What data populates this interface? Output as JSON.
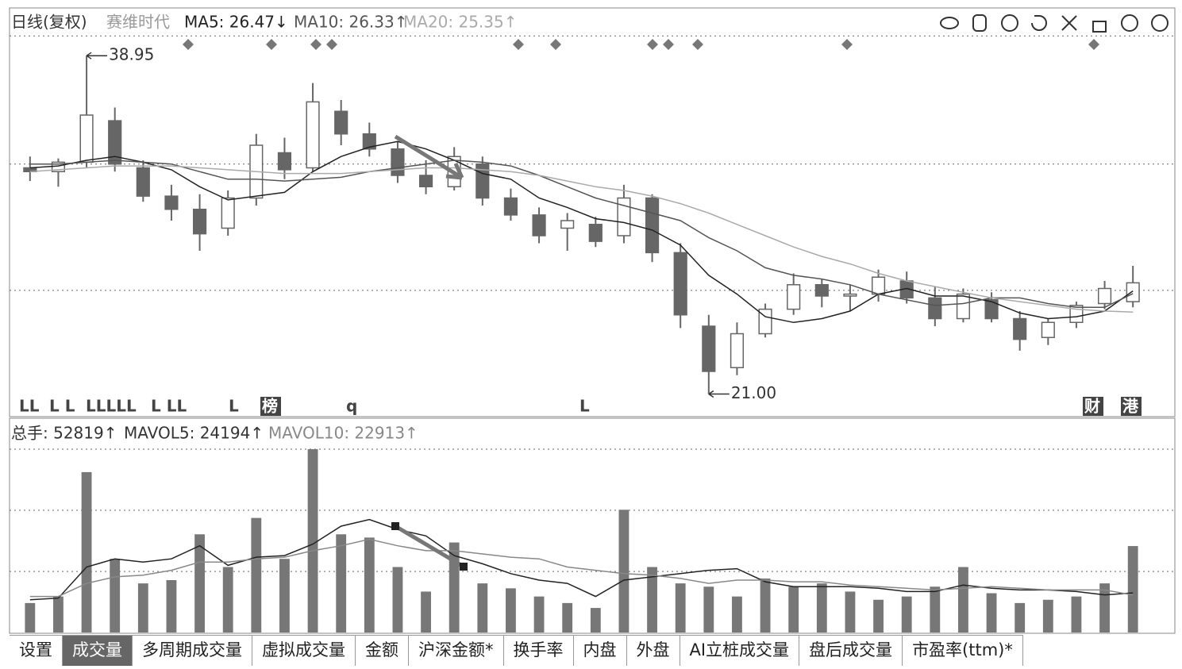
{
  "header": {
    "period": "日线(复权)",
    "stock": "赛维时代",
    "legend": [
      "MA5: 26.47↓",
      "MA10: 26.33↑",
      "MA20: 25.35↑"
    ]
  },
  "chart_data": [
    {
      "type": "candlestick",
      "open": [
        33.0,
        32.8,
        33.3,
        35.5,
        33.0,
        31.5,
        30.8,
        29.8,
        31.4,
        33.8,
        33.0,
        36.0,
        34.8,
        34.0,
        32.6,
        32.0,
        33.2,
        31.4,
        30.5,
        29.8,
        30.0,
        29.4,
        31.4,
        28.5,
        24.6,
        22.4,
        24.2,
        25.5,
        26.8,
        26.2,
        26.3,
        27.0,
        26.1,
        25.0,
        26.0,
        25.0,
        24.0,
        24.8,
        25.8,
        25.9
      ],
      "high": [
        33.6,
        33.5,
        38.95,
        36.2,
        33.4,
        32.1,
        31.6,
        31.8,
        34.8,
        34.6,
        37.5,
        36.6,
        35.4,
        34.4,
        33.4,
        34.1,
        33.6,
        31.9,
        30.9,
        30.6,
        30.4,
        32.1,
        31.6,
        29.0,
        25.2,
        24.8,
        25.8,
        27.4,
        27.1,
        26.8,
        27.6,
        27.5,
        26.7,
        26.6,
        26.4,
        25.4,
        25.0,
        25.9,
        27.0,
        27.8
      ],
      "low": [
        32.3,
        32.0,
        33.0,
        32.8,
        31.2,
        30.2,
        28.6,
        29.4,
        31.0,
        32.4,
        32.8,
        34.2,
        33.6,
        32.2,
        31.6,
        31.8,
        31.0,
        30.2,
        29.0,
        28.6,
        28.8,
        29.0,
        28.0,
        24.5,
        21.0,
        22.0,
        24.0,
        25.2,
        25.6,
        25.4,
        25.9,
        25.8,
        24.6,
        24.8,
        24.8,
        23.3,
        23.6,
        24.5,
        25.5,
        25.6
      ],
      "close": [
        32.8,
        33.3,
        35.8,
        33.2,
        31.5,
        30.8,
        29.5,
        31.4,
        34.2,
        32.9,
        36.5,
        34.8,
        34.0,
        32.6,
        32.0,
        33.6,
        31.4,
        30.5,
        29.4,
        30.2,
        29.1,
        31.4,
        28.5,
        25.2,
        22.2,
        24.2,
        25.5,
        26.8,
        26.2,
        26.3,
        27.2,
        26.1,
        25.0,
        26.3,
        25.0,
        23.9,
        24.8,
        25.7,
        26.6,
        26.9
      ],
      "series": [
        {
          "color": "#222222",
          "values": [
            33.0,
            33.1,
            33.4,
            33.6,
            33.3,
            32.9,
            32.0,
            31.3,
            31.5,
            31.7,
            32.8,
            33.6,
            34.1,
            34.4,
            34.0,
            33.4,
            32.7,
            32.4,
            31.4,
            30.9,
            30.3,
            30.1,
            29.7,
            28.9,
            27.3,
            26.3,
            25.1,
            24.8,
            25.0,
            25.4,
            26.3,
            26.6,
            26.2,
            26.2,
            25.9,
            25.3,
            25.0,
            25.1,
            25.4,
            26.47
          ]
        },
        {
          "color": "#555555",
          "values": [
            33.2,
            33.2,
            33.3,
            33.4,
            33.3,
            33.2,
            32.8,
            32.4,
            32.4,
            32.3,
            32.4,
            32.5,
            32.8,
            33.0,
            33.2,
            33.4,
            33.3,
            33.1,
            32.6,
            32.0,
            31.4,
            31.0,
            30.6,
            30.2,
            29.3,
            28.6,
            27.7,
            27.3,
            27.1,
            26.8,
            26.3,
            26.0,
            25.7,
            25.8,
            26.1,
            26.1,
            25.8,
            25.6,
            25.6,
            26.33
          ]
        },
        {
          "color": "#aaaaaa",
          "values": [
            32.8,
            32.9,
            33.0,
            33.1,
            33.1,
            33.1,
            33.0,
            32.9,
            32.8,
            32.7,
            32.7,
            32.7,
            32.8,
            32.9,
            33.0,
            33.0,
            32.9,
            32.8,
            32.6,
            32.3,
            32.0,
            31.8,
            31.5,
            31.1,
            30.6,
            30.0,
            29.4,
            28.8,
            28.3,
            27.9,
            27.4,
            27.0,
            26.7,
            26.4,
            26.1,
            25.9,
            25.7,
            25.5,
            25.4,
            25.35
          ]
        }
      ],
      "ylim": [
        19.8,
        41.4
      ],
      "ygrid": [
        40,
        33.2,
        26.5
      ],
      "annotations": {
        "high": 38.95,
        "low": {
          "value": 21,
          "label": "21.00"
        }
      },
      "event_labels": [
        "LL",
        "L L",
        "LLLLL",
        "L LL",
        "L",
        "榜",
        "q",
        "L",
        "财",
        "港"
      ]
    },
    {
      "type": "bar",
      "legend": [
        "总手: 52819↑",
        "MAVOL5: 24194↑",
        "MAVOL10: 22913↑"
      ],
      "values": [
        18000,
        22000,
        98000,
        45000,
        30000,
        32000,
        60000,
        40000,
        70000,
        45000,
        112000,
        60000,
        58000,
        40000,
        25000,
        55000,
        30000,
        27000,
        22000,
        18000,
        15000,
        75000,
        40000,
        30000,
        28000,
        22000,
        33000,
        28000,
        30000,
        25000,
        20000,
        22000,
        28000,
        40000,
        24000,
        18000,
        20000,
        22000,
        30000,
        52819
      ],
      "color": "#777777",
      "series": [
        {
          "color": "#222222",
          "values": [
            20000,
            21000,
            40000,
            45000,
            43000,
            45000,
            53000,
            41000,
            46000,
            47000,
            54000,
            65000,
            69000,
            63000,
            59000,
            47000,
            42000,
            36000,
            32000,
            30000,
            22000,
            32000,
            34000,
            36000,
            38000,
            39000,
            31000,
            28000,
            28000,
            28000,
            27000,
            25000,
            25000,
            29000,
            27000,
            26000,
            26000,
            25000,
            23000,
            24194
          ]
        },
        {
          "color": "#888888",
          "values": [
            22000,
            22000,
            30000,
            34000,
            35000,
            38000,
            43000,
            43000,
            45000,
            46000,
            50000,
            53000,
            57000,
            53000,
            50000,
            50000,
            48000,
            46000,
            45000,
            40000,
            38000,
            36000,
            35000,
            33000,
            30000,
            32000,
            32000,
            31000,
            31000,
            29000,
            28000,
            27000,
            26000,
            27000,
            28000,
            27000,
            26000,
            26000,
            26000,
            22913
          ]
        }
      ],
      "ylim": [
        0,
        112500
      ],
      "ygrid": [
        37300,
        74700,
        112000
      ]
    }
  ],
  "tabs": [
    "设置",
    "成交量",
    "多周期成交量",
    "虚拟成交量",
    "金额",
    "沪深金额*",
    "换手率",
    "内盘",
    "外盘",
    "AI立桩成交量",
    "盘后成交量",
    "市盈率(ttm)*"
  ],
  "active_tab": 1
}
